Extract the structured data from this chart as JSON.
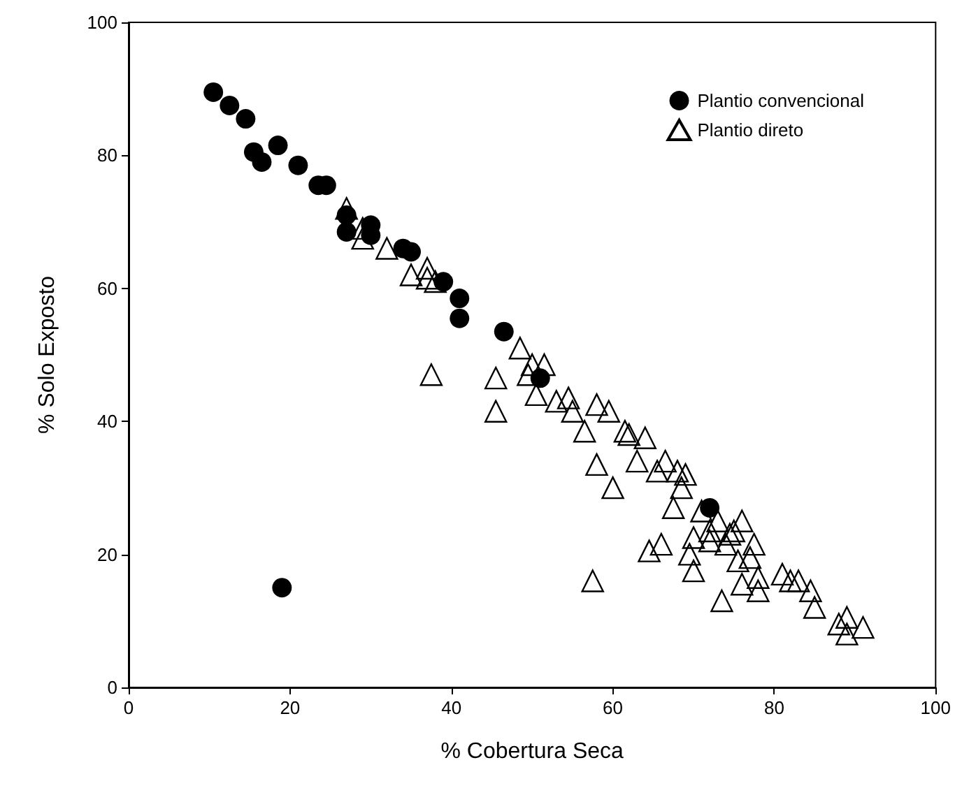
{
  "chart_data": {
    "type": "scatter",
    "xlabel": "% Cobertura Seca",
    "ylabel": "% Solo Exposto",
    "xlim": [
      0,
      100
    ],
    "ylim": [
      0,
      100
    ],
    "xticks": [
      0,
      20,
      40,
      60,
      80,
      100
    ],
    "yticks": [
      0,
      20,
      40,
      60,
      80,
      100
    ],
    "grid": false,
    "legend": "top right",
    "series": [
      {
        "name": "Plantio convencional",
        "color": "#000000",
        "marker": "circle",
        "x": [
          10.5,
          12.5,
          14.5,
          15.5,
          18.5,
          16.5,
          21,
          23.5,
          24.5,
          27,
          27,
          30,
          30,
          34,
          35,
          39,
          41,
          41,
          46.5,
          19,
          51,
          72
        ],
        "values": [
          89.5,
          87.5,
          85.5,
          80.5,
          81.5,
          79,
          78.5,
          75.5,
          75.5,
          71,
          68.5,
          69.5,
          68,
          66,
          65.5,
          61,
          58.5,
          55.5,
          53.5,
          15,
          46.5,
          27
        ]
      },
      {
        "name": "Plantio direto",
        "color": "#000000",
        "marker": "triangle",
        "x": [
          27,
          29,
          29,
          32,
          35,
          37,
          37,
          38,
          37.5,
          45.5,
          45.5,
          48.5,
          49.5,
          50,
          50.5,
          51.5,
          53,
          54.5,
          55,
          56.5,
          57.5,
          58,
          58,
          59.5,
          60,
          61.5,
          62,
          63,
          64,
          64.5,
          65.5,
          66,
          66.5,
          67.5,
          68,
          68.5,
          69,
          69.5,
          70,
          70,
          71,
          72,
          72,
          73,
          73.5,
          74,
          75,
          75.5,
          76,
          76,
          77.5,
          78,
          78,
          81,
          82,
          83,
          84.5,
          85,
          88,
          89,
          89,
          91,
          74.5,
          77
        ],
        "values": [
          71.5,
          68.5,
          67,
          65.5,
          61.5,
          62.5,
          61,
          60.5,
          46.5,
          46,
          41,
          50.5,
          46.5,
          48,
          43.5,
          48,
          42.5,
          43,
          41,
          38,
          15.5,
          42,
          33,
          41,
          29.5,
          38,
          37.5,
          33.5,
          37,
          20,
          32,
          21,
          33.5,
          26.5,
          32,
          29.5,
          31.5,
          19.5,
          17,
          22,
          26,
          23,
          21.5,
          24.5,
          12.5,
          21,
          23,
          18.5,
          15,
          24.5,
          21,
          14,
          16,
          16.5,
          15.5,
          15.5,
          14,
          11.5,
          9,
          10,
          7.5,
          8.5,
          22.5,
          19
        ]
      }
    ]
  }
}
